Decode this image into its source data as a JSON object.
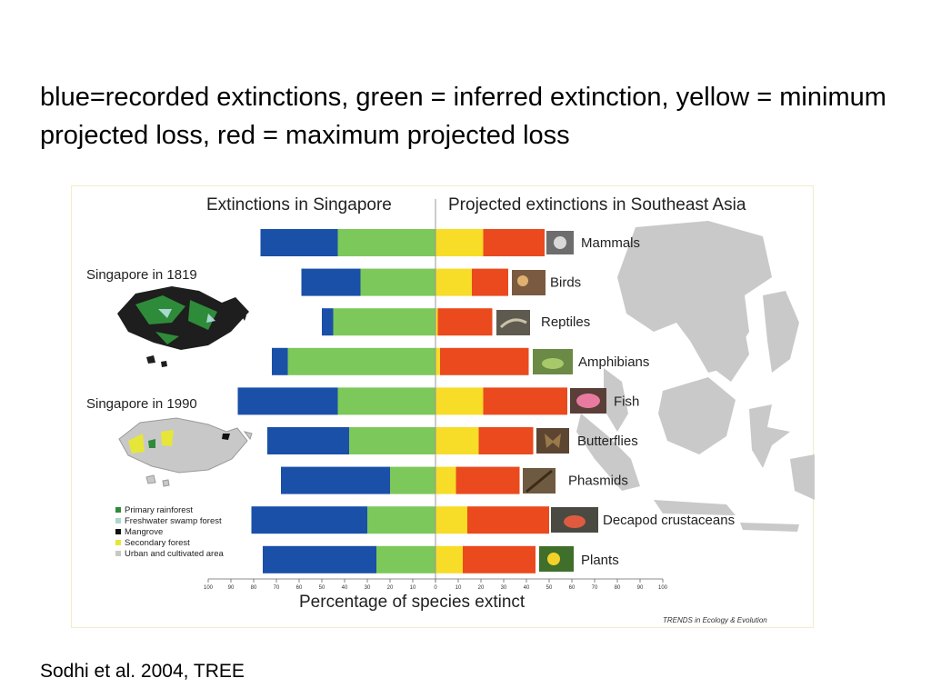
{
  "caption": "blue=recorded extinctions, green = inferred extinction, yellow = minimum projected loss, red = maximum projected loss",
  "citation": "Sodhi et al. 2004, TREE",
  "figure": {
    "left_header": "Extinctions in Singapore",
    "right_header": "Projected extinctions in Southeast Asia",
    "map_1819_title": "Singapore in 1819",
    "map_1990_title": "Singapore in 1990",
    "legend": [
      {
        "label": "Primary rainforest",
        "color": "#2e8b3a"
      },
      {
        "label": "Freshwater swamp forest",
        "color": "#a8d8d0"
      },
      {
        "label": "Mangrove",
        "color": "#111111"
      },
      {
        "label": "Secondary forest",
        "color": "#e6e63a"
      },
      {
        "label": "Urban and cultivated area",
        "color": "#c8c8c8"
      }
    ],
    "credit": "TRENDS in Ecology & Evolution",
    "icons": [
      "mammal-photo",
      "bird-photo",
      "reptile-photo",
      "amphibian-photo",
      "fish-photo",
      "butterfly-photo",
      "phasmid-photo",
      "crab-photo",
      "plant-photo"
    ]
  },
  "chart_data": {
    "type": "bar",
    "orientation": "horizontal-diverging",
    "xlabel": "Percentage of species extinct",
    "x_ticks": [
      100,
      90,
      80,
      70,
      60,
      50,
      40,
      30,
      20,
      10,
      0,
      10,
      20,
      30,
      40,
      50,
      60,
      70,
      80,
      90,
      100
    ],
    "xlim": [
      -100,
      100
    ],
    "categories": [
      "Mammals",
      "Birds",
      "Reptiles",
      "Amphibians",
      "Fish",
      "Butterflies",
      "Phasmids",
      "Decapod crustaceans",
      "Plants"
    ],
    "colors": {
      "recorded": "#1a50a8",
      "inferred": "#7cc85a",
      "minimum": "#f7dc28",
      "maximum": "#ea4a1e"
    },
    "series": [
      {
        "side": "left",
        "values": [
          43,
          33,
          45,
          65,
          43,
          38,
          20,
          30,
          26
        ]
      },
      {
        "side": "left",
        "values": [
          77,
          59,
          50,
          72,
          87,
          74,
          68,
          81,
          76
        ]
      },
      {
        "side": "right",
        "values": [
          21,
          16,
          1,
          2,
          21,
          19,
          9,
          14,
          12
        ]
      },
      {
        "side": "right",
        "values": [
          48,
          32,
          25,
          41,
          58,
          43,
          37,
          50,
          44
        ]
      }
    ],
    "grid": false,
    "legend": "none"
  }
}
